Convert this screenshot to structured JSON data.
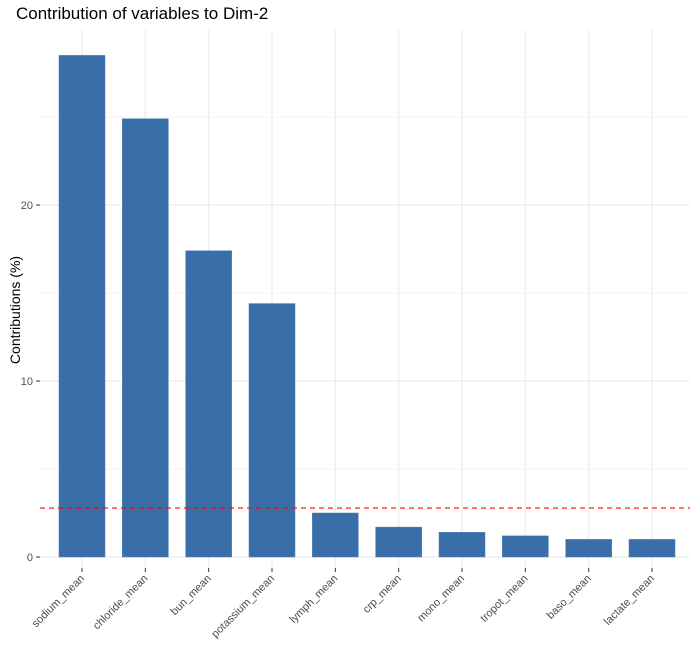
{
  "chart_data": {
    "type": "bar",
    "title": "Contribution of variables to Dim-2",
    "xlabel": "",
    "ylabel": "Contributions (%)",
    "categories": [
      "sodium_mean",
      "chloride_mean",
      "bun_mean",
      "potassium_mean",
      "lymph_mean",
      "crp_mean",
      "mono_mean",
      "tropot_mean",
      "baso_mean",
      "lactate_mean"
    ],
    "values": [
      28.5,
      24.9,
      17.4,
      14.4,
      2.5,
      1.7,
      1.4,
      1.2,
      1.0,
      1.0
    ],
    "ylim": [
      0,
      30
    ],
    "yticks": [
      0,
      10,
      20
    ],
    "reference_line": 2.78,
    "grid": true,
    "colors": {
      "bar": "#3a6ea8",
      "bar_outline": "#4a7fba",
      "reference_line": "#ff0000",
      "grid_major": "#ebebeb",
      "grid_minor": "#f5f5f5"
    }
  }
}
